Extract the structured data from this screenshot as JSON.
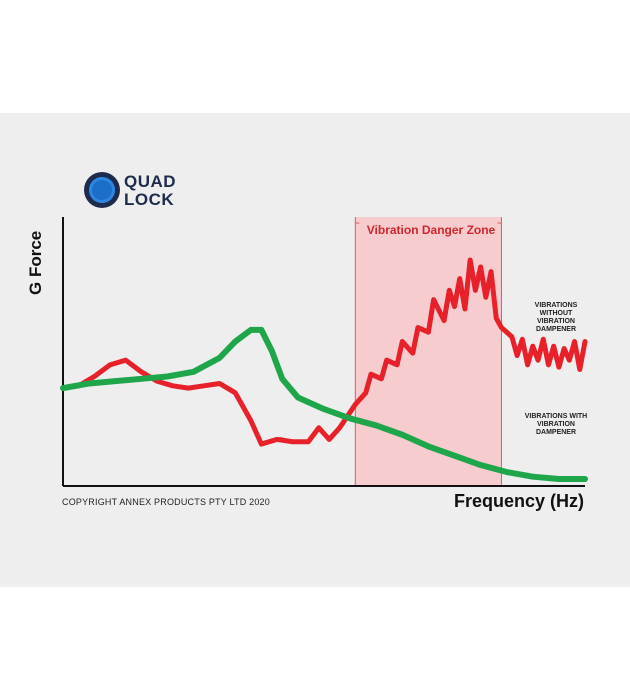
{
  "brand": {
    "logo_line1": "QUAD",
    "logo_line2": "LOCK"
  },
  "copyright": "COPYRIGHT ANNEX PRODUCTS PTY LTD 2020",
  "colors": {
    "danger_zone": "#f7c6c8",
    "without_dampener": "#e8202a",
    "with_dampener": "#1fa64a"
  },
  "chart_data": {
    "type": "line",
    "title": "",
    "xlabel": "Frequency (Hz)",
    "ylabel": "G Force",
    "xlim": [
      0,
      100
    ],
    "ylim": [
      0,
      100
    ],
    "grid": false,
    "highlight_region": {
      "label": "Vibration Danger Zone",
      "x_range": [
        56,
        84
      ]
    },
    "series": [
      {
        "name": "VIBRATIONS WITHOUT VIBRATION DAMPENER",
        "color": "#e8202a",
        "x": [
          0,
          3,
          6,
          9,
          12,
          15,
          18,
          21,
          24,
          27,
          30,
          33,
          36,
          38,
          41,
          44,
          47,
          49,
          51,
          53,
          56,
          58,
          59,
          61,
          62,
          64,
          65,
          67,
          68,
          70,
          71,
          73,
          74,
          75,
          76,
          77,
          78,
          79,
          80,
          81,
          82,
          83,
          84,
          86,
          87,
          88,
          89,
          90,
          91,
          92,
          93,
          94,
          95,
          96,
          97,
          98,
          99,
          100
        ],
        "y": [
          42,
          43,
          47,
          52,
          54,
          49,
          45,
          43,
          42,
          43,
          44,
          40,
          28,
          18,
          20,
          19,
          19,
          25,
          20,
          25,
          35,
          40,
          48,
          46,
          54,
          52,
          62,
          57,
          68,
          66,
          80,
          71,
          84,
          77,
          89,
          76,
          97,
          84,
          94,
          81,
          92,
          72,
          68,
          64,
          56,
          63,
          52,
          60,
          54,
          63,
          52,
          60,
          51,
          59,
          54,
          62,
          50,
          62
        ]
      },
      {
        "name": "VIBRATIONS WITH VIBRATION DAMPENER",
        "color": "#1fa64a",
        "x": [
          0,
          5,
          10,
          15,
          20,
          25,
          30,
          33,
          36,
          38,
          40,
          42,
          45,
          50,
          55,
          60,
          65,
          70,
          75,
          80,
          85,
          90,
          95,
          100
        ],
        "y": [
          42,
          44,
          45,
          46,
          47,
          49,
          55,
          62,
          67,
          67,
          58,
          46,
          38,
          33,
          29,
          26,
          22,
          17,
          13,
          9,
          6,
          4,
          3,
          3
        ]
      }
    ]
  }
}
